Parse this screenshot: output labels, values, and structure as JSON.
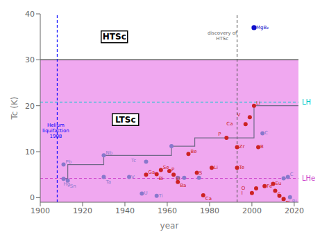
{
  "chart_data": {
    "type": "scatter",
    "xlabel": "year",
    "ylabel": "Tc (K)",
    "xlim": [
      1900,
      2022
    ],
    "ylim": [
      -1,
      40
    ],
    "xticks": [
      1900,
      1920,
      1940,
      1960,
      1980,
      2000,
      2020
    ],
    "yticks": [
      0,
      10,
      20,
      30,
      40
    ],
    "grid": false,
    "series": [
      {
        "type": "line",
        "line_style": "step",
        "color": "#706888",
        "x": [
          1911,
          1913,
          1930,
          1962,
          1973,
          1988,
          2001,
          2022
        ],
        "values": [
          4.1,
          7.2,
          9.2,
          11.2,
          13.0,
          13.0,
          20.0,
          20.0
        ]
      },
      {
        "type": "scatter",
        "color": "#8878cc",
        "x": [
          1911,
          1913,
          1911,
          1930,
          1930,
          1942,
          1948,
          1955,
          1950,
          1962,
          1965,
          1968,
          1975,
          2005,
          2015,
          2017,
          2018
        ],
        "values": [
          4.1,
          3.7,
          7.2,
          4.5,
          9.2,
          4.5,
          0.9,
          0.4,
          7.8,
          11.2,
          4.3,
          4.3,
          4.3,
          14.0,
          4.2,
          4.5,
          0.1
        ],
        "labels": [
          "Hg",
          "Sn",
          "Pb",
          "Ta",
          "Nb",
          "V",
          "U",
          "Ti",
          "Tc",
          null,
          null,
          null,
          null,
          "C",
          null,
          "C",
          "Bi"
        ]
      },
      {
        "type": "scatter",
        "color": "#cc2222",
        "x": [
          1950,
          1955,
          1957,
          1961,
          1963,
          1965,
          1970,
          1974,
          1981,
          1977,
          1988,
          1993,
          1993,
          1997,
          1999,
          2001,
          2003,
          2000,
          2002,
          2006,
          2010,
          2011,
          2013,
          2015
        ],
        "values": [
          5.0,
          5.1,
          6.0,
          5.8,
          5.0,
          3.4,
          9.5,
          5.4,
          6.5,
          0.5,
          13.0,
          6.5,
          11.0,
          16.0,
          17.5,
          20.0,
          11.0,
          1.0,
          2.0,
          2.5,
          3.0,
          1.5,
          0.4,
          -0.3
        ],
        "labels": [
          "Ga",
          "Bi",
          "Se",
          "P",
          "Bi",
          "Ba",
          "Be",
          "S",
          "Li",
          "Ca",
          "P",
          "Te",
          "Zr",
          "Ca",
          "V",
          "Li",
          "B",
          "I",
          "O",
          "Fe",
          "Eu",
          "C",
          "Li",
          "Bi"
        ]
      },
      {
        "type": "scatter",
        "color": "#1010cc",
        "x": [
          2001
        ],
        "values": [
          37.0
        ],
        "labels": [
          "MgB₂"
        ]
      }
    ],
    "regions": [
      {
        "text": "LTSc",
        "ylim": [
          -1,
          30
        ],
        "color": "#f0a8f0"
      },
      {
        "text": "HTSc",
        "ylim": [
          30,
          40
        ],
        "color": "#ffffff"
      }
    ],
    "reference_lines": [
      {
        "y": 30,
        "color": "#000000",
        "line_style": "solid"
      },
      {
        "y": 20.8,
        "color": "#00cccc",
        "line_style": "dashed",
        "text": "LH"
      },
      {
        "y": 4.2,
        "color": "#cc44cc",
        "line_style": "dashed",
        "text": "LHe"
      },
      {
        "x": 1908,
        "color": "#0000ff",
        "line_style": "dashed",
        "text": "Helium\nliquifaction\n1908"
      },
      {
        "x": 1993,
        "color": "#555555",
        "line_style": "dashed",
        "text": "discovery of\nHTSc"
      }
    ]
  }
}
